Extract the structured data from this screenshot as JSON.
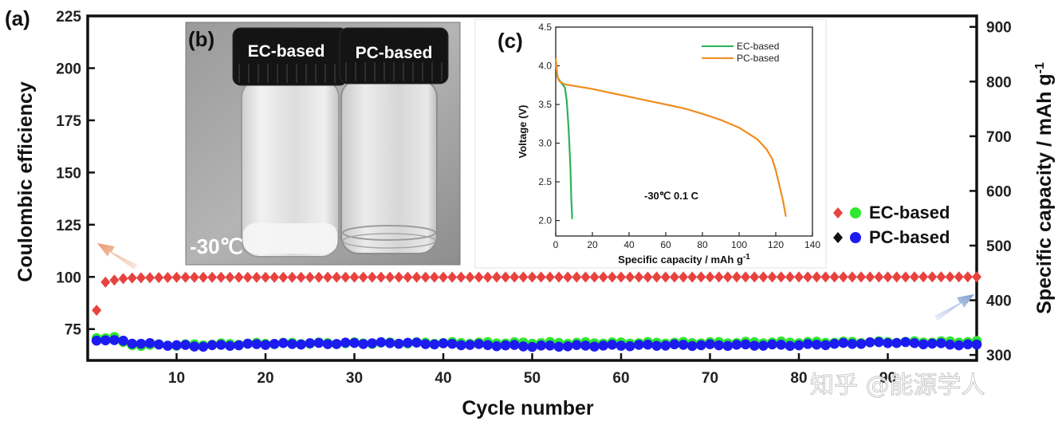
{
  "chart_data": [
    {
      "type": "scatter",
      "panel": "(a)",
      "xlabel": "Cycle number",
      "ylabel_left": "Coulombic efficiency",
      "ylabel_right": "Specific capacity / mAh g",
      "ylabel_right_superscript": "-1",
      "xlim": [
        0,
        100
      ],
      "ylim_left": [
        60,
        225
      ],
      "ylim_right": [
        290,
        920
      ],
      "x_ticks": [
        "10",
        "20",
        "30",
        "40",
        "50",
        "60",
        "70",
        "80",
        "90"
      ],
      "y_left_ticks": [
        "75",
        "100",
        "125",
        "150",
        "175",
        "200",
        "225"
      ],
      "y_right_ticks": [
        "300",
        "400",
        "500",
        "600",
        "700",
        "800",
        "900"
      ],
      "legend": [
        {
          "label": "EC-based",
          "markers": [
            {
              "shape": "diamond",
              "color": "#e8423f"
            },
            {
              "shape": "circle",
              "color": "#2ee830"
            }
          ]
        },
        {
          "label": "PC-based",
          "markers": [
            {
              "shape": "diamond",
              "color": "#111111"
            },
            {
              "shape": "circle",
              "color": "#1c1cf0"
            }
          ]
        }
      ],
      "series": [
        {
          "name": "EC-based Coulombic efficiency",
          "axis": "left",
          "marker": "diamond",
          "color": "#e8423f",
          "points": [
            [
              1,
              84
            ],
            [
              2,
              97.5
            ],
            [
              3,
              98.5
            ],
            [
              4,
              99.2
            ],
            [
              5,
              99.5
            ],
            [
              10,
              99.8
            ],
            [
              50,
              99.9
            ],
            [
              100,
              100
            ]
          ],
          "x_start": 1,
          "x_end": 100
        },
        {
          "name": "EC-based Specific capacity",
          "axis": "right",
          "marker": "circle",
          "color": "#2ee830",
          "points": [
            [
              1,
              330
            ],
            [
              2,
              332
            ],
            [
              3,
              333
            ],
            [
              4,
              322
            ],
            [
              5,
              318
            ],
            [
              10,
              318
            ],
            [
              20,
              321
            ],
            [
              40,
              322
            ],
            [
              60,
              322
            ],
            [
              80,
              323
            ],
            [
              100,
              324
            ]
          ],
          "x_start": 1,
          "x_end": 100
        },
        {
          "name": "PC-based Specific capacity",
          "axis": "right",
          "marker": "circle",
          "color": "#1c1cf0",
          "points": [
            [
              1,
              327
            ],
            [
              2,
              328
            ],
            [
              3,
              326
            ],
            [
              4,
              325
            ],
            [
              5,
              322
            ],
            [
              8,
              319
            ],
            [
              12,
              316
            ],
            [
              20,
              320
            ],
            [
              35,
              322
            ],
            [
              50,
              316
            ],
            [
              65,
              318
            ],
            [
              80,
              318
            ],
            [
              90,
              323
            ],
            [
              100,
              318
            ]
          ],
          "x_start": 1,
          "x_end": 100
        }
      ],
      "annotations": [
        {
          "type": "arrow",
          "direction": "up-left",
          "color": "#e8a07a",
          "meaning": "points to left axis"
        },
        {
          "type": "arrow",
          "direction": "up-right",
          "color": "#8aa8d8",
          "meaning": "points to right axis"
        }
      ]
    },
    {
      "type": "line",
      "panel": "(c)",
      "xlabel": "Specific capacity / mAh g",
      "xlabel_superscript": "-1",
      "ylabel": "Voltage (V)",
      "xlim": [
        0,
        140
      ],
      "ylim": [
        1.8,
        4.5
      ],
      "x_ticks": [
        "0",
        "20",
        "40",
        "60",
        "80",
        "100",
        "120",
        "140"
      ],
      "y_ticks": [
        "2.0",
        "2.5",
        "3.0",
        "3.5",
        "4.0",
        "4.5"
      ],
      "annotation": "-30℃  0.1 C",
      "series": [
        {
          "name": "EC-based",
          "color": "#2bb35a",
          "x": [
            0,
            1,
            3,
            5,
            6,
            7,
            8,
            8.5,
            9
          ],
          "y": [
            4.05,
            3.85,
            3.78,
            3.72,
            3.55,
            3.2,
            2.7,
            2.3,
            2.02
          ]
        },
        {
          "name": "PC-based",
          "color": "#f08c1e",
          "x": [
            0,
            1,
            2,
            5,
            10,
            20,
            30,
            40,
            50,
            60,
            70,
            80,
            90,
            100,
            110,
            115,
            118,
            120,
            122,
            124,
            125.5
          ],
          "y": [
            4.1,
            3.85,
            3.8,
            3.76,
            3.74,
            3.7,
            3.65,
            3.6,
            3.55,
            3.5,
            3.45,
            3.38,
            3.3,
            3.2,
            3.05,
            2.92,
            2.8,
            2.65,
            2.45,
            2.25,
            2.05
          ]
        }
      ]
    }
  ],
  "photo": {
    "panel": "(b)",
    "left_cap_label": "EC-based",
    "right_cap_label": "PC-based",
    "temperature": "-30℃"
  },
  "watermark": "知乎 @能源学人"
}
